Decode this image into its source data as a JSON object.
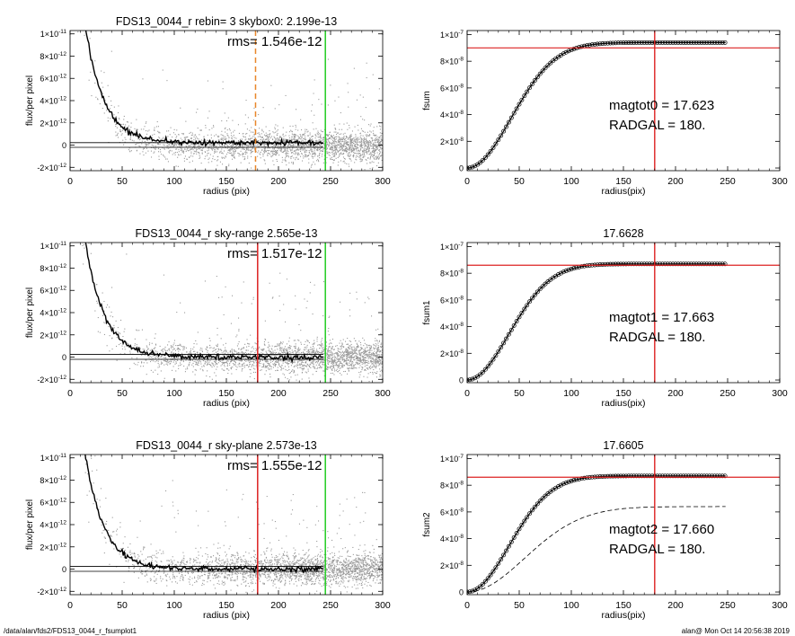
{
  "footer": {
    "path": "/data/alan/fds2/FDS13_0044_r_fsumplot1",
    "stamp": "alan@  Mon Oct 14 20:56:38 2019"
  },
  "chart_data": [
    {
      "type": "scatter",
      "title": "FDS13_0044_r rebin= 3    skybox0:  2.199e-13",
      "annotation": "rms= 1.546e-12",
      "xlabel": "radius (pix)",
      "ylabel": "flux/per pixel",
      "xlim": [
        0,
        300
      ],
      "ylim": [
        -2.3e-12,
        1.03e-11
      ],
      "xticks": [
        0,
        50,
        100,
        150,
        200,
        250,
        300
      ],
      "yticks": [
        {
          "v": 1e-11,
          "t": "1×10",
          "e": "-11"
        },
        {
          "v": 8e-12,
          "t": "8×10",
          "e": "-12"
        },
        {
          "v": 6e-12,
          "t": "6×10",
          "e": "-12"
        },
        {
          "v": 4e-12,
          "t": "4×10",
          "e": "-12"
        },
        {
          "v": 2e-12,
          "t": "2×10",
          "e": "-12"
        },
        {
          "v": 0,
          "t": "0",
          "e": ""
        },
        {
          "v": -2e-12,
          "t": "-2×10",
          "e": "-12"
        }
      ],
      "profile": {
        "amplitude": 2.35e-11,
        "scale": 18,
        "offset": 2e-13,
        "xmax": 243
      },
      "hlines": [
        2.2e-13,
        -2e-13
      ],
      "vlines": [
        {
          "x": 178,
          "color": "#e8862a",
          "dash": true
        },
        {
          "x": 245,
          "color": "#22cc22",
          "dash": false
        }
      ],
      "scatter_color": "#9a9a9a"
    },
    {
      "type": "line",
      "xlabel": "radius(pix)",
      "ylabel": "fsum",
      "xlim": [
        0,
        300
      ],
      "ylim": [
        -2e-09,
        1.03e-07
      ],
      "xticks": [
        0,
        50,
        100,
        150,
        200,
        250,
        300
      ],
      "yticks": [
        {
          "v": 1e-07,
          "t": "1×10",
          "e": "-7"
        },
        {
          "v": 8e-08,
          "t": "8×10",
          "e": "-8"
        },
        {
          "v": 6e-08,
          "t": "6×10",
          "e": "-8"
        },
        {
          "v": 4e-08,
          "t": "4×10",
          "e": "-8"
        },
        {
          "v": 2e-08,
          "t": "2×10",
          "e": "-8"
        },
        {
          "v": 0,
          "t": "0",
          "e": ""
        }
      ],
      "curve": {
        "asymptote": 9.4e-08,
        "scale": 42,
        "xmax": 248
      },
      "markers": true,
      "crosshair": {
        "x": 180,
        "y": 9e-08
      },
      "annotations": [
        "magtot0 =  17.623",
        "RADGAL =    180."
      ]
    },
    {
      "type": "scatter",
      "title": "FDS13_0044_r sky-range  2.565e-13",
      "annotation": "rms= 1.517e-12",
      "xlabel": "radius (pix)",
      "ylabel": "flux/per pixel",
      "xlim": [
        0,
        300
      ],
      "ylim": [
        -2.3e-12,
        1.03e-11
      ],
      "xticks": [
        0,
        50,
        100,
        150,
        200,
        250,
        300
      ],
      "yticks": [
        {
          "v": 1e-11,
          "t": "1×10",
          "e": "-11"
        },
        {
          "v": 8e-12,
          "t": "8×10",
          "e": "-12"
        },
        {
          "v": 6e-12,
          "t": "6×10",
          "e": "-12"
        },
        {
          "v": 4e-12,
          "t": "4×10",
          "e": "-12"
        },
        {
          "v": 2e-12,
          "t": "2×10",
          "e": "-12"
        },
        {
          "v": 0,
          "t": "0",
          "e": ""
        },
        {
          "v": -2e-12,
          "t": "-2×10",
          "e": "-12"
        }
      ],
      "profile": {
        "amplitude": 2.35e-11,
        "scale": 18,
        "offset": 0,
        "xmax": 243
      },
      "hlines": [
        2.5e-13,
        -2e-13
      ],
      "vlines": [
        {
          "x": 180,
          "color": "#dd2222",
          "dash": false
        },
        {
          "x": 245,
          "color": "#22cc22",
          "dash": false
        }
      ],
      "scatter_color": "#9a9a9a"
    },
    {
      "type": "line",
      "title": "17.6628",
      "xlabel": "radius(pix)",
      "ylabel": "fsum1",
      "xlim": [
        0,
        300
      ],
      "ylim": [
        -2e-09,
        1.03e-07
      ],
      "xticks": [
        0,
        50,
        100,
        150,
        200,
        250,
        300
      ],
      "yticks": [
        {
          "v": 1e-07,
          "t": "1×10",
          "e": "-7"
        },
        {
          "v": 8e-08,
          "t": "8×10",
          "e": "-8"
        },
        {
          "v": 6e-08,
          "t": "6×10",
          "e": "-8"
        },
        {
          "v": 4e-08,
          "t": "4×10",
          "e": "-8"
        },
        {
          "v": 2e-08,
          "t": "2×10",
          "e": "-8"
        },
        {
          "v": 0,
          "t": "0",
          "e": ""
        }
      ],
      "curve": {
        "asymptote": 8.7e-08,
        "scale": 40,
        "xmax": 248
      },
      "markers": true,
      "crosshair": {
        "x": 180,
        "y": 8.6e-08
      },
      "annotations": [
        "magtot1 =  17.663",
        "RADGAL =    180."
      ]
    },
    {
      "type": "scatter",
      "title": "FDS13_0044_r sky-plane  2.573e-13",
      "annotation": "rms= 1.555e-12",
      "xlabel": "radius (pix)",
      "ylabel": "flux/per pixel",
      "xlim": [
        0,
        300
      ],
      "ylim": [
        -2.3e-12,
        1.03e-11
      ],
      "xticks": [
        0,
        50,
        100,
        150,
        200,
        250,
        300
      ],
      "yticks": [
        {
          "v": 1e-11,
          "t": "1×10",
          "e": "-11"
        },
        {
          "v": 8e-12,
          "t": "8×10",
          "e": "-12"
        },
        {
          "v": 6e-12,
          "t": "6×10",
          "e": "-12"
        },
        {
          "v": 4e-12,
          "t": "4×10",
          "e": "-12"
        },
        {
          "v": 2e-12,
          "t": "2×10",
          "e": "-12"
        },
        {
          "v": 0,
          "t": "0",
          "e": ""
        },
        {
          "v": -2e-12,
          "t": "-2×10",
          "e": "-12"
        }
      ],
      "profile": {
        "amplitude": 2.35e-11,
        "scale": 18,
        "offset": 0,
        "xmax": 243
      },
      "hlines": [
        2.5e-13,
        -2e-13
      ],
      "vlines": [
        {
          "x": 180,
          "color": "#dd2222",
          "dash": false
        },
        {
          "x": 245,
          "color": "#22cc22",
          "dash": false
        }
      ],
      "scatter_color": "#9a9a9a"
    },
    {
      "type": "line",
      "title": "17.6605",
      "xlabel": "radius(pix)",
      "ylabel": "fsum2",
      "xlim": [
        0,
        300
      ],
      "ylim": [
        -2e-09,
        1.03e-07
      ],
      "xticks": [
        0,
        50,
        100,
        150,
        200,
        250,
        300
      ],
      "yticks": [
        {
          "v": 1e-07,
          "t": "1×10",
          "e": "-7"
        },
        {
          "v": 8e-08,
          "t": "8×10",
          "e": "-8"
        },
        {
          "v": 6e-08,
          "t": "6×10",
          "e": "-8"
        },
        {
          "v": 4e-08,
          "t": "4×10",
          "e": "-8"
        },
        {
          "v": 2e-08,
          "t": "2×10",
          "e": "-8"
        },
        {
          "v": 0,
          "t": "0",
          "e": ""
        }
      ],
      "curve": {
        "asymptote": 8.7e-08,
        "scale": 40,
        "xmax": 248
      },
      "dashed_curve": {
        "asymptote": 6.4e-08,
        "scale": 55,
        "xmax": 248
      },
      "markers": true,
      "crosshair": {
        "x": 180,
        "y": 8.6e-08
      },
      "annotations": [
        "magtot2 =  17.660",
        "RADGAL =    180."
      ]
    }
  ]
}
